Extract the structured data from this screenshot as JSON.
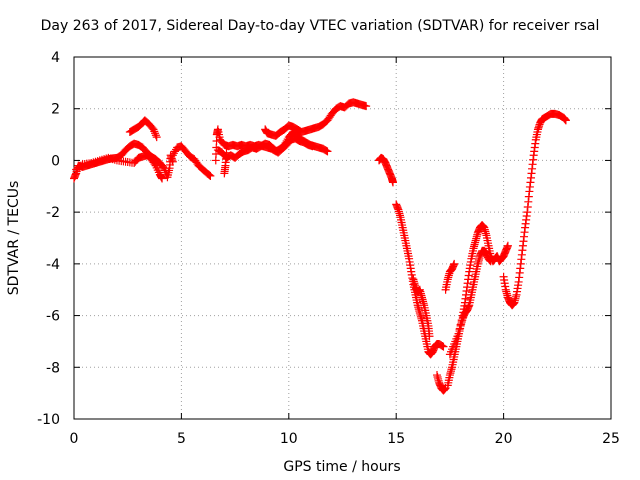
{
  "chart_data": {
    "type": "scatter",
    "title": "Day 263 of 2017, Sidereal Day-to-day VTEC variation (SDTVAR) for receiver rsal",
    "xlabel": "GPS time / hours",
    "ylabel": "SDTVAR / TECUs",
    "xlim": [
      0,
      25
    ],
    "ylim": [
      -10,
      4
    ],
    "xticks": [
      0,
      5,
      10,
      15,
      20,
      25
    ],
    "yticks": [
      -10,
      -8,
      -6,
      -4,
      -2,
      0,
      2,
      4
    ],
    "grid": true,
    "marker": "+",
    "color": "#ff0000",
    "series": [
      {
        "name": "SDTVAR",
        "segments": [
          [
            [
              0.0,
              -0.7
            ],
            [
              0.1,
              -0.5
            ],
            [
              0.2,
              -0.2
            ],
            [
              0.4,
              -0.25
            ],
            [
              0.6,
              -0.2
            ],
            [
              0.8,
              -0.15
            ],
            [
              1.0,
              -0.1
            ],
            [
              1.2,
              -0.05
            ],
            [
              1.4,
              0.0
            ],
            [
              1.6,
              0.05
            ],
            [
              1.8,
              0.08
            ],
            [
              2.0,
              0.1
            ],
            [
              2.2,
              0.2
            ],
            [
              2.4,
              0.4
            ],
            [
              2.6,
              0.55
            ],
            [
              2.8,
              0.65
            ],
            [
              3.0,
              0.6
            ],
            [
              3.2,
              0.5
            ],
            [
              3.4,
              0.3
            ],
            [
              3.6,
              0.15
            ],
            [
              3.8,
              0.05
            ],
            [
              4.0,
              -0.1
            ],
            [
              4.2,
              -0.3
            ],
            [
              4.35,
              -0.65
            ],
            [
              4.45,
              -0.3
            ],
            [
              4.5,
              0.2
            ],
            [
              4.6,
              -0.05
            ]
          ],
          [
            [
              0.1,
              -0.35
            ],
            [
              0.4,
              -0.15
            ],
            [
              0.8,
              -0.1
            ],
            [
              1.2,
              0.0
            ],
            [
              1.6,
              0.1
            ],
            [
              2.0,
              0.0
            ],
            [
              2.4,
              -0.05
            ],
            [
              2.8,
              -0.1
            ],
            [
              3.0,
              0.1
            ],
            [
              3.2,
              0.15
            ],
            [
              3.4,
              0.2
            ],
            [
              3.6,
              0.05
            ],
            [
              3.8,
              -0.2
            ],
            [
              4.0,
              -0.55
            ],
            [
              4.1,
              -0.7
            ]
          ],
          [
            [
              2.6,
              1.1
            ],
            [
              2.8,
              1.2
            ],
            [
              3.0,
              1.3
            ],
            [
              3.2,
              1.45
            ],
            [
              3.3,
              1.55
            ],
            [
              3.5,
              1.4
            ],
            [
              3.7,
              1.2
            ],
            [
              3.85,
              0.9
            ]
          ],
          [
            [
              4.6,
              0.2
            ],
            [
              4.8,
              0.5
            ],
            [
              5.0,
              0.55
            ],
            [
              5.2,
              0.35
            ],
            [
              5.4,
              0.15
            ],
            [
              5.6,
              0.05
            ],
            [
              5.8,
              -0.2
            ],
            [
              6.0,
              -0.35
            ],
            [
              6.2,
              -0.5
            ],
            [
              6.35,
              -0.6
            ]
          ],
          [
            [
              6.6,
              0.0
            ],
            [
              6.65,
              1.0
            ],
            [
              6.7,
              1.2
            ],
            [
              6.8,
              0.8
            ],
            [
              7.0,
              0.6
            ],
            [
              7.2,
              0.55
            ],
            [
              7.4,
              0.6
            ],
            [
              7.6,
              0.55
            ],
            [
              7.8,
              0.6
            ],
            [
              8.0,
              0.55
            ],
            [
              8.2,
              0.6
            ],
            [
              8.4,
              0.55
            ],
            [
              8.6,
              0.6
            ],
            [
              8.8,
              0.55
            ],
            [
              9.0,
              0.5
            ],
            [
              9.2,
              0.45
            ],
            [
              9.4,
              0.35
            ],
            [
              9.6,
              0.45
            ],
            [
              9.8,
              0.6
            ],
            [
              10.0,
              0.9
            ],
            [
              10.2,
              1.1
            ],
            [
              10.4,
              0.9
            ],
            [
              10.6,
              0.8
            ],
            [
              10.8,
              0.7
            ],
            [
              11.0,
              0.6
            ],
            [
              11.2,
              0.55
            ],
            [
              11.4,
              0.5
            ],
            [
              11.6,
              0.45
            ],
            [
              11.8,
              0.35
            ]
          ],
          [
            [
              6.7,
              0.4
            ],
            [
              6.9,
              0.3
            ],
            [
              7.1,
              0.1
            ],
            [
              7.3,
              0.2
            ],
            [
              7.5,
              0.1
            ],
            [
              7.7,
              0.25
            ],
            [
              7.9,
              0.35
            ],
            [
              8.1,
              0.4
            ],
            [
              8.3,
              0.5
            ],
            [
              8.5,
              0.45
            ],
            [
              8.7,
              0.55
            ],
            [
              8.9,
              0.65
            ],
            [
              9.1,
              0.6
            ],
            [
              9.3,
              0.45
            ],
            [
              9.5,
              0.3
            ],
            [
              9.7,
              0.45
            ],
            [
              9.9,
              0.6
            ],
            [
              10.1,
              0.8
            ],
            [
              10.3,
              0.85
            ],
            [
              10.5,
              0.75
            ],
            [
              10.7,
              0.7
            ],
            [
              10.9,
              0.6
            ],
            [
              11.1,
              0.55
            ]
          ],
          [
            [
              7.0,
              -0.5
            ],
            [
              7.05,
              -0.2
            ],
            [
              7.1,
              0.3
            ]
          ],
          [
            [
              8.9,
              1.2
            ],
            [
              9.0,
              1.05
            ],
            [
              9.2,
              1.0
            ],
            [
              9.4,
              0.95
            ],
            [
              9.6,
              1.1
            ],
            [
              9.8,
              1.2
            ],
            [
              10.0,
              1.35
            ],
            [
              10.2,
              1.3
            ],
            [
              10.4,
              1.2
            ],
            [
              10.6,
              1.1
            ],
            [
              10.8,
              1.15
            ],
            [
              11.0,
              1.2
            ],
            [
              11.2,
              1.25
            ],
            [
              11.4,
              1.3
            ],
            [
              11.6,
              1.4
            ],
            [
              11.8,
              1.55
            ],
            [
              12.0,
              1.8
            ],
            [
              12.2,
              2.0
            ],
            [
              12.4,
              2.1
            ],
            [
              12.6,
              2.05
            ],
            [
              12.8,
              2.2
            ],
            [
              13.0,
              2.25
            ],
            [
              13.2,
              2.2
            ],
            [
              13.4,
              2.15
            ],
            [
              13.6,
              2.1
            ]
          ],
          [
            [
              14.2,
              0.0
            ],
            [
              14.3,
              0.1
            ],
            [
              14.4,
              0.05
            ],
            [
              14.5,
              -0.1
            ],
            [
              14.6,
              -0.3
            ],
            [
              14.7,
              -0.5
            ],
            [
              14.8,
              -0.7
            ],
            [
              14.85,
              -0.85
            ]
          ],
          [
            [
              15.0,
              -1.7
            ],
            [
              15.1,
              -1.9
            ],
            [
              15.2,
              -2.2
            ],
            [
              15.3,
              -2.6
            ],
            [
              15.4,
              -3.0
            ],
            [
              15.5,
              -3.4
            ],
            [
              15.6,
              -3.8
            ],
            [
              15.7,
              -4.3
            ],
            [
              15.8,
              -4.8
            ],
            [
              15.9,
              -5.2
            ],
            [
              16.0,
              -5.6
            ],
            [
              16.1,
              -5.9
            ],
            [
              16.2,
              -6.2
            ],
            [
              16.3,
              -6.6
            ],
            [
              16.4,
              -7.0
            ],
            [
              16.5,
              -7.4
            ],
            [
              16.6,
              -7.5
            ],
            [
              16.7,
              -7.4
            ],
            [
              16.8,
              -7.2
            ],
            [
              16.9,
              -7.1
            ],
            [
              17.0,
              -7.1
            ],
            [
              17.2,
              -7.2
            ]
          ],
          [
            [
              15.8,
              -4.6
            ],
            [
              15.9,
              -4.9
            ],
            [
              16.0,
              -5.1
            ],
            [
              16.1,
              -5.0
            ],
            [
              16.2,
              -5.3
            ],
            [
              16.3,
              -5.6
            ],
            [
              16.4,
              -6.0
            ],
            [
              16.5,
              -6.4
            ],
            [
              16.55,
              -6.8
            ]
          ],
          [
            [
              16.9,
              -8.3
            ],
            [
              17.0,
              -8.6
            ],
            [
              17.1,
              -8.8
            ],
            [
              17.2,
              -8.9
            ],
            [
              17.3,
              -8.8
            ]
          ],
          [
            [
              17.3,
              -5.0
            ],
            [
              17.4,
              -4.6
            ],
            [
              17.5,
              -4.3
            ],
            [
              17.6,
              -4.2
            ],
            [
              17.7,
              -4.0
            ]
          ],
          [
            [
              17.4,
              -8.7
            ],
            [
              17.5,
              -8.3
            ],
            [
              17.6,
              -8.0
            ],
            [
              17.7,
              -7.6
            ],
            [
              17.8,
              -7.2
            ],
            [
              17.9,
              -6.8
            ],
            [
              18.0,
              -6.4
            ],
            [
              18.1,
              -6.1
            ],
            [
              18.2,
              -5.9
            ],
            [
              18.3,
              -5.8
            ],
            [
              18.4,
              -5.6
            ],
            [
              18.5,
              -5.2
            ],
            [
              18.6,
              -4.8
            ],
            [
              18.7,
              -4.4
            ],
            [
              18.8,
              -4.0
            ],
            [
              18.9,
              -3.7
            ],
            [
              19.0,
              -3.5
            ],
            [
              19.1,
              -3.5
            ],
            [
              19.2,
              -3.6
            ],
            [
              19.3,
              -3.8
            ],
            [
              19.4,
              -3.9
            ]
          ],
          [
            [
              17.5,
              -7.5
            ],
            [
              17.7,
              -7.1
            ],
            [
              17.9,
              -6.7
            ],
            [
              18.1,
              -6.0
            ],
            [
              18.2,
              -5.5
            ],
            [
              18.3,
              -4.9
            ],
            [
              18.4,
              -4.3
            ],
            [
              18.5,
              -3.8
            ],
            [
              18.6,
              -3.4
            ],
            [
              18.7,
              -3.1
            ],
            [
              18.8,
              -2.8
            ],
            [
              18.9,
              -2.6
            ],
            [
              19.0,
              -2.5
            ],
            [
              19.1,
              -2.6
            ],
            [
              19.2,
              -2.9
            ],
            [
              19.3,
              -3.3
            ],
            [
              19.4,
              -3.7
            ],
            [
              19.5,
              -3.9
            ],
            [
              19.6,
              -3.8
            ],
            [
              19.7,
              -3.7
            ],
            [
              19.8,
              -3.9
            ],
            [
              19.9,
              -3.8
            ],
            [
              20.0,
              -3.7
            ],
            [
              20.1,
              -3.5
            ],
            [
              20.2,
              -3.3
            ]
          ],
          [
            [
              20.0,
              -4.5
            ],
            [
              20.1,
              -5.0
            ],
            [
              20.2,
              -5.3
            ],
            [
              20.3,
              -5.5
            ],
            [
              20.4,
              -5.6
            ],
            [
              20.5,
              -5.5
            ],
            [
              20.6,
              -5.2
            ],
            [
              20.7,
              -4.7
            ],
            [
              20.8,
              -4.0
            ],
            [
              20.9,
              -3.3
            ],
            [
              21.0,
              -2.6
            ],
            [
              21.1,
              -2.0
            ],
            [
              21.2,
              -1.2
            ],
            [
              21.3,
              -0.5
            ],
            [
              21.4,
              0.2
            ],
            [
              21.5,
              0.8
            ],
            [
              21.6,
              1.2
            ],
            [
              21.7,
              1.45
            ],
            [
              21.8,
              1.6
            ],
            [
              22.0,
              1.7
            ],
            [
              22.2,
              1.8
            ],
            [
              22.4,
              1.8
            ],
            [
              22.6,
              1.75
            ],
            [
              22.8,
              1.65
            ],
            [
              22.9,
              1.55
            ]
          ]
        ]
      }
    ]
  }
}
